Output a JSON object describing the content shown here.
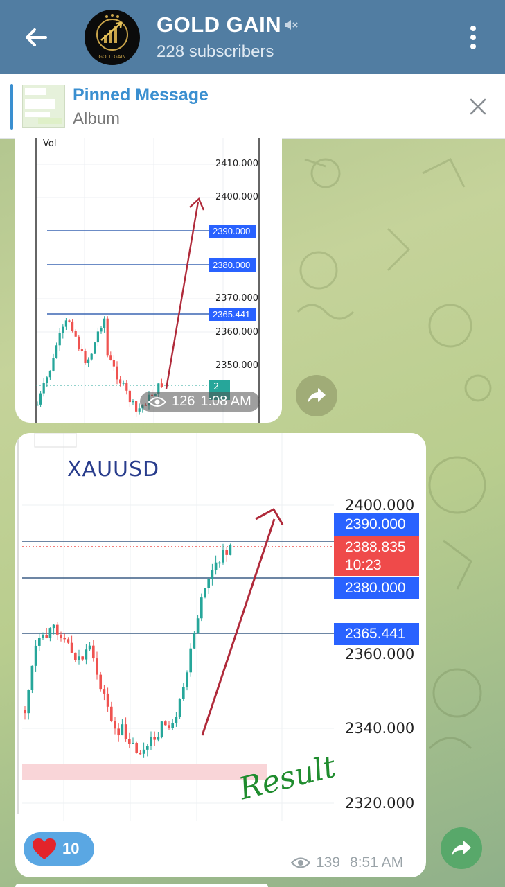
{
  "header": {
    "title": "GOLD GAIN",
    "subtitle": "228 subscribers",
    "avatar_text": "GOLD GAIN"
  },
  "pinned": {
    "title": "Pinned Message",
    "subtitle": "Album"
  },
  "message1": {
    "chart": {
      "vol_label": "Vol",
      "axis_labels": [
        "2410.000",
        "2400.000",
        "2370.000",
        "2360.000",
        "2350.000"
      ],
      "level_tags": [
        "2390.000",
        "2380.000",
        "2365.441"
      ],
      "current_tag": "2"
    },
    "views": "126",
    "time": "1:08 AM"
  },
  "message2": {
    "chart": {
      "symbol": "XAUUSD",
      "axis_labels": [
        "2400.000",
        "2360.000",
        "2340.000",
        "2320.000"
      ],
      "level_tags": [
        "2390.000",
        "2380.000",
        "2365.441"
      ],
      "current_price": "2388.835",
      "countdown": "10:23",
      "annotation": "Result"
    },
    "reaction_count": "10",
    "views": "139",
    "time": "8:51 AM"
  },
  "colors": {
    "header": "#517da2",
    "accent": "#3a8fd0",
    "bull": "#26a69a",
    "bear": "#ef5350",
    "level_tag": "#2962ff",
    "price_tag": "#ef4a4a",
    "arrow": "#b02a3a"
  }
}
